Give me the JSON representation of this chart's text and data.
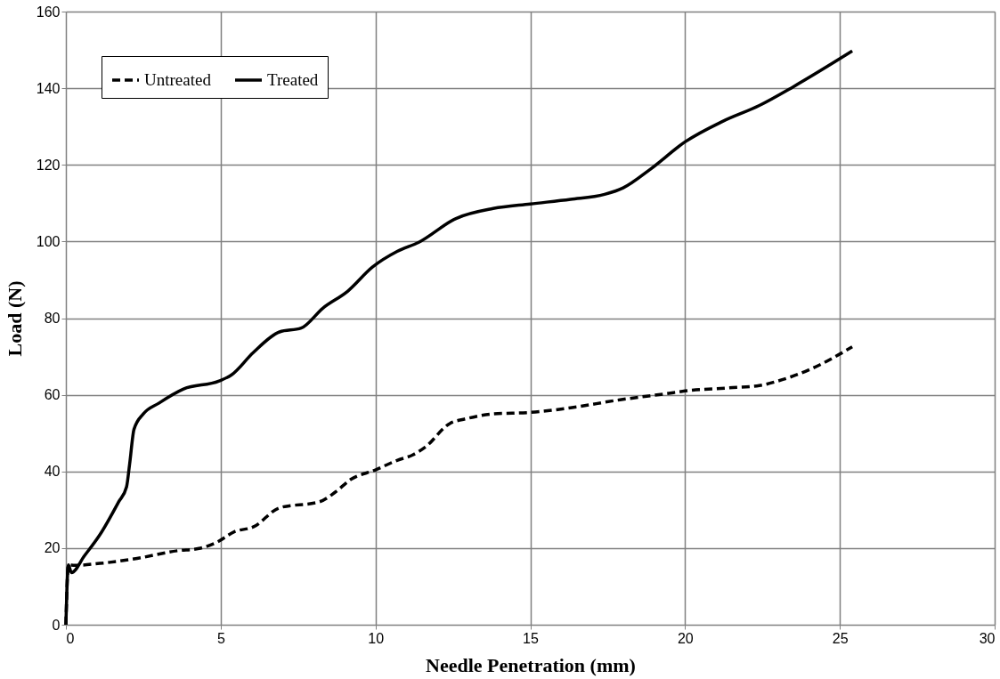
{
  "chart_data": {
    "type": "line",
    "xlabel": "Needle Penetration (mm)",
    "ylabel": "Load (N)",
    "xlim": [
      0,
      30
    ],
    "xticks": [
      0,
      5,
      10,
      15,
      20,
      25,
      30
    ],
    "ylim": [
      0,
      160
    ],
    "yticks": [
      0,
      20,
      40,
      60,
      80,
      100,
      120,
      140,
      160
    ],
    "grid": true,
    "legend": "top left",
    "marker": "none",
    "series": [
      {
        "name": "Untreated",
        "color": "#000000",
        "line_style": "dashed",
        "x": [
          0,
          0.08,
          0.28,
          1.1,
          2.3,
          3.6,
          4.3,
          4.85,
          5.45,
          6.05,
          6.9,
          8.2,
          8.7,
          9.2,
          10.0,
          10.7,
          11.2,
          11.6,
          12.4,
          12.9,
          13.8,
          15,
          16.3,
          17.9,
          19.4,
          20,
          21.4,
          22.4,
          23.0,
          24.0,
          25.4
        ],
        "values": [
          0,
          15.6,
          15.5,
          16,
          17.3,
          19.3,
          19.9,
          21.4,
          24.3,
          25.5,
          30.5,
          32.1,
          34.6,
          37.9,
          40.4,
          42.9,
          44.3,
          46.3,
          52.5,
          53.7,
          55,
          55.4,
          56.6,
          58.7,
          60.3,
          61,
          61.8,
          62.4,
          63.6,
          66.5,
          72.5
        ]
      },
      {
        "name": "Treated",
        "color": "#000000",
        "line_style": "solid",
        "x": [
          0,
          0.08,
          0.18,
          0.6,
          1.1,
          1.7,
          1.96,
          2.06,
          2.2,
          2.5,
          3.0,
          3.8,
          4.95,
          5.35,
          6.05,
          6.9,
          7.6,
          8.3,
          9.1,
          9.9,
          10.7,
          11.4,
          12.6,
          13.8,
          15,
          16.3,
          17.4,
          18.0,
          18.9,
          20,
          21.2,
          22.4,
          23.5,
          25.4
        ],
        "values": [
          0,
          15.6,
          13.6,
          18,
          23.5,
          32,
          36,
          42,
          51,
          55,
          57.8,
          61.5,
          63.6,
          65.2,
          71,
          76.4,
          77.4,
          82.6,
          87,
          93.3,
          97.4,
          99.8,
          106,
          108.6,
          109.8,
          111,
          112.3,
          114,
          119,
          126,
          131.3,
          135.5,
          140.4,
          149.7
        ]
      }
    ]
  }
}
